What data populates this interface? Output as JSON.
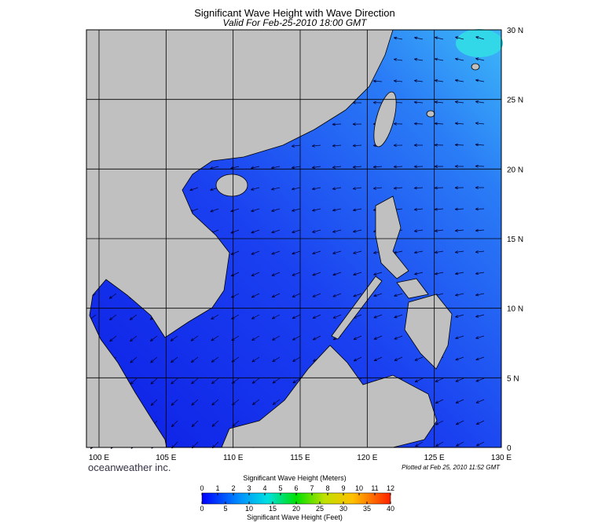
{
  "header": {
    "title": "Significant Wave Height with Wave Direction",
    "subtitle": "Valid For Feb-25-2010 18:00 GMT"
  },
  "map": {
    "lat_labels": [
      "30 N",
      "25 N",
      "20 N",
      "15 N",
      "10 N",
      "5 N",
      "0"
    ],
    "lon_labels": [
      "100 E",
      "105 E",
      "110 E",
      "115 E",
      "120 E",
      "125 E",
      "130 E"
    ]
  },
  "footer": {
    "brand": "oceanweather inc.",
    "plotted": "Plotted at Feb 25, 2010 11:52 GMT"
  },
  "colorbar": {
    "meters_title": "Significant Wave Height (Meters)",
    "meters_lim": [
      0,
      12
    ],
    "meters_ticks": [
      0,
      1,
      2,
      3,
      4,
      5,
      6,
      7,
      8,
      9,
      10,
      11,
      12
    ],
    "feet_title": "Significant Wave Height (Feet)",
    "feet_lim": [
      0,
      40
    ],
    "feet_ticks": [
      0,
      5,
      10,
      15,
      20,
      25,
      30,
      35,
      40
    ]
  }
}
